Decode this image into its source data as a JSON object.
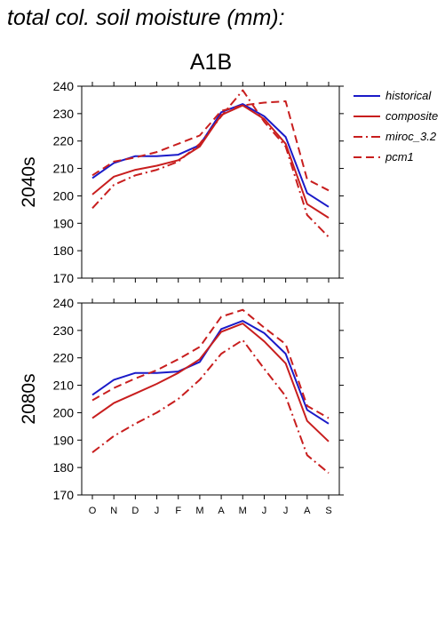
{
  "title": "total col. soil moisture (mm):",
  "scenario": "A1B",
  "colors": {
    "historical": "#1a1ac8",
    "composite": "#c81e1e",
    "miroc_3.2": "#c81e1e",
    "pcm1": "#c81e1e"
  },
  "legend": [
    {
      "key": "historical",
      "label": "historical",
      "dash": ""
    },
    {
      "key": "composite",
      "label": "composite",
      "dash": ""
    },
    {
      "key": "miroc_3.2",
      "label": "miroc_3.2",
      "dash": "10 4 2 4"
    },
    {
      "key": "pcm1",
      "label": "pcm1",
      "dash": "9 5"
    }
  ],
  "chart_data": [
    {
      "type": "line",
      "panel_label": "2040s",
      "categories": [
        "O",
        "N",
        "D",
        "J",
        "F",
        "M",
        "A",
        "M",
        "J",
        "J",
        "A",
        "S"
      ],
      "ylim": [
        170,
        240
      ],
      "yticks": [
        170,
        180,
        190,
        200,
        210,
        220,
        230,
        240
      ],
      "series": [
        {
          "name": "historical",
          "values": [
            206.5,
            212,
            214.5,
            214.5,
            215,
            218.5,
            230.5,
            233.5,
            229,
            221.5,
            201,
            196
          ]
        },
        {
          "name": "composite",
          "values": [
            200.5,
            207,
            209.5,
            211,
            213,
            218,
            229.5,
            233,
            228,
            219,
            197,
            192
          ]
        },
        {
          "name": "miroc_3.2",
          "values": [
            195.5,
            204,
            207.5,
            209.5,
            212.5,
            219,
            229,
            238.5,
            227,
            218,
            193,
            185
          ]
        },
        {
          "name": "pcm1",
          "values": [
            207.5,
            212.5,
            214,
            216,
            219,
            222,
            231,
            233,
            234,
            234.5,
            206,
            202
          ]
        }
      ]
    },
    {
      "type": "line",
      "panel_label": "2080s",
      "categories": [
        "O",
        "N",
        "D",
        "J",
        "F",
        "M",
        "A",
        "M",
        "J",
        "J",
        "A",
        "S"
      ],
      "ylim": [
        170,
        240
      ],
      "yticks": [
        170,
        180,
        190,
        200,
        210,
        220,
        230,
        240
      ],
      "series": [
        {
          "name": "historical",
          "values": [
            206.5,
            212,
            214.5,
            214.5,
            215,
            218.5,
            230.5,
            233.5,
            229,
            221.5,
            201,
            196
          ]
        },
        {
          "name": "composite",
          "values": [
            198,
            203.5,
            207,
            210.5,
            214.5,
            219.5,
            229.5,
            232.5,
            226,
            218,
            197,
            189.5
          ]
        },
        {
          "name": "miroc_3.2",
          "values": [
            185.5,
            191.5,
            196,
            200,
            205,
            212,
            221.5,
            226.5,
            216,
            206,
            184.5,
            178
          ]
        },
        {
          "name": "pcm1",
          "values": [
            204.5,
            209,
            212.5,
            215.5,
            219.5,
            224,
            235,
            237.5,
            231,
            225,
            202.5,
            198
          ]
        }
      ]
    }
  ]
}
